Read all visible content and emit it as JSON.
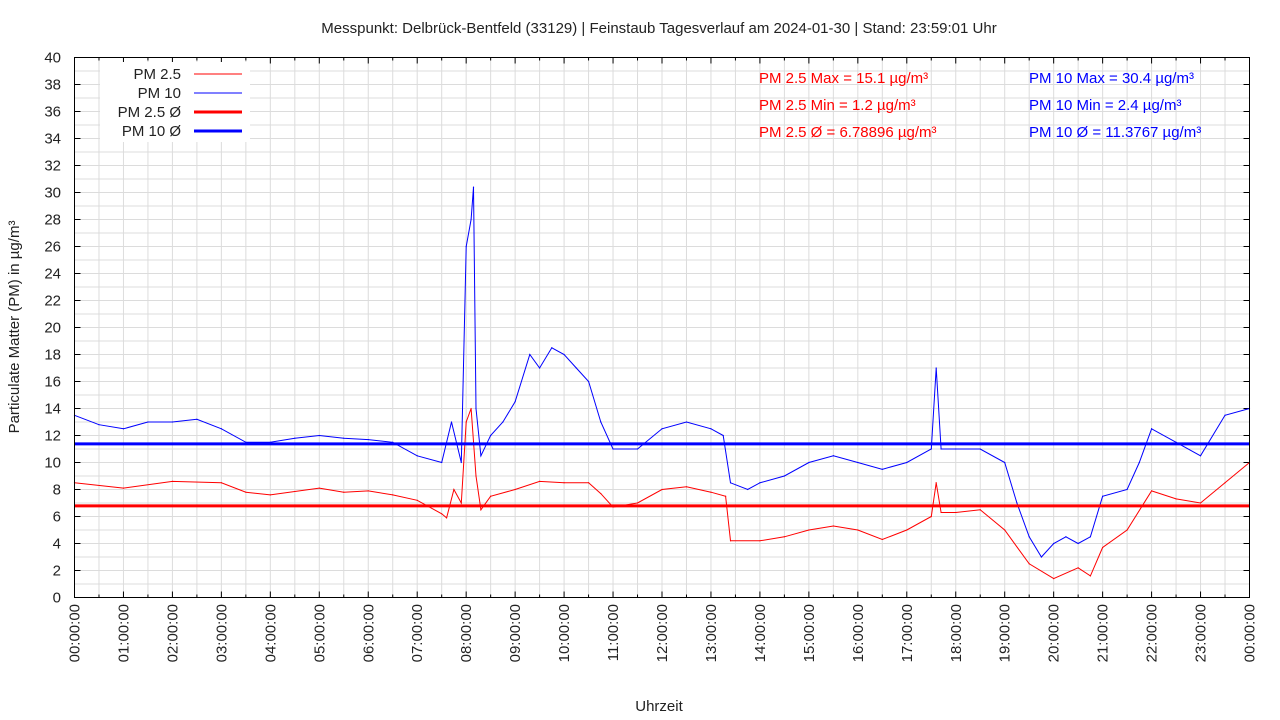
{
  "chart_data": {
    "type": "line",
    "title": "Messpunkt: Delbrück-Bentfeld (33129) | Feinstaub Tagesverlauf am 2024-01-30 | Stand: 23:59:01 Uhr",
    "xlabel": "Uhrzeit",
    "ylabel": "Particulate Matter (PM) in µg/m³",
    "xlim": [
      0,
      24
    ],
    "ylim": [
      0,
      40
    ],
    "grid": true,
    "legend_placement": "top-left",
    "x_tick_labels": [
      "00:00:00",
      "01:00:00",
      "02:00:00",
      "03:00:00",
      "04:00:00",
      "05:00:00",
      "06:00:00",
      "07:00:00",
      "08:00:00",
      "09:00:00",
      "10:00:00",
      "11:00:00",
      "12:00:00",
      "13:00:00",
      "14:00:00",
      "15:00:00",
      "16:00:00",
      "17:00:00",
      "18:00:00",
      "19:00:00",
      "20:00:00",
      "21:00:00",
      "22:00:00",
      "23:00:00",
      "00:00:00"
    ],
    "y_ticks": [
      0,
      2,
      4,
      6,
      8,
      10,
      12,
      14,
      16,
      18,
      20,
      22,
      24,
      26,
      28,
      30,
      32,
      34,
      36,
      38,
      40
    ],
    "series": [
      {
        "name": "PM 2.5",
        "color": "#ff0000",
        "x": [
          0,
          1,
          2,
          3,
          3.5,
          4,
          5,
          5.5,
          6,
          6.5,
          7,
          7.5,
          7.6,
          7.75,
          7.9,
          8,
          8.1,
          8.2,
          8.3,
          8.5,
          9,
          9.5,
          10,
          10.5,
          10.75,
          11,
          11.5,
          12,
          12.5,
          13,
          13.3,
          13.4,
          14,
          14.5,
          15,
          15.5,
          16,
          16.5,
          17,
          17.5,
          17.6,
          17.7,
          18,
          18.5,
          19,
          19.5,
          20,
          20.5,
          20.75,
          21,
          21.5,
          22,
          22.5,
          23,
          23.5,
          24
        ],
        "y": [
          8.5,
          8.1,
          8.6,
          8.5,
          7.8,
          7.6,
          8.1,
          7.8,
          7.9,
          7.6,
          7.2,
          6.2,
          5.9,
          8,
          7,
          13,
          14,
          9,
          6.5,
          7.5,
          8,
          8.6,
          8.5,
          8.5,
          7.7,
          6.7,
          7,
          8,
          8.2,
          7.8,
          7.5,
          4.2,
          4.2,
          4.5,
          5,
          5.3,
          5,
          4.3,
          5,
          6,
          8.5,
          6.3,
          6.3,
          6.5,
          5,
          2.5,
          1.4,
          2.2,
          1.6,
          3.7,
          5,
          7.9,
          7.3,
          7,
          8.5,
          10
        ]
      },
      {
        "name": "PM 10",
        "color": "#0000ff",
        "x": [
          0,
          0.5,
          1,
          1.5,
          2,
          2.5,
          3,
          3.5,
          4,
          4.5,
          5,
          5.5,
          6,
          6.5,
          7,
          7.5,
          7.7,
          7.9,
          8,
          8.1,
          8.15,
          8.2,
          8.3,
          8.5,
          8.75,
          9,
          9.3,
          9.5,
          9.75,
          10,
          10.25,
          10.5,
          10.75,
          11,
          11.5,
          12,
          12.5,
          13,
          13.25,
          13.4,
          13.75,
          14,
          14.5,
          15,
          15.5,
          16,
          16.5,
          17,
          17.5,
          17.6,
          17.7,
          18,
          18.5,
          19,
          19.25,
          19.5,
          19.75,
          20,
          20.25,
          20.5,
          20.75,
          21,
          21.5,
          21.75,
          22,
          22.5,
          23,
          23.5,
          24
        ],
        "y": [
          13.5,
          12.8,
          12.5,
          13,
          13,
          13.2,
          12.5,
          11.5,
          11.5,
          11.8,
          12,
          11.8,
          11.7,
          11.5,
          10.5,
          10,
          13,
          10,
          26,
          28,
          30.4,
          14,
          10.5,
          12,
          13,
          14.5,
          18,
          17,
          18.5,
          18,
          17,
          16,
          13,
          11,
          11,
          12.5,
          13,
          12.5,
          12,
          8.5,
          8,
          8.5,
          9,
          10,
          10.5,
          10,
          9.5,
          10,
          11,
          17,
          11,
          11,
          11,
          10,
          7,
          4.5,
          3,
          4,
          4.5,
          4,
          4.5,
          7.5,
          8,
          10,
          12.5,
          11.5,
          10.5,
          13.5,
          14
        ]
      },
      {
        "name": "PM 2.5 Ø",
        "color": "#ff0000",
        "constant": 6.78896
      },
      {
        "name": "PM 10 Ø",
        "color": "#0000ff",
        "constant": 11.3767
      }
    ],
    "annotations": {
      "pm25": [
        "PM 2.5 Max = 15.1 µg/m³",
        "PM 2.5 Min = 1.2 µg/m³",
        "PM 2.5 Ø = 6.78896 µg/m³"
      ],
      "pm10": [
        "PM 10 Max = 30.4 µg/m³",
        "PM 10 Min = 2.4 µg/m³",
        "PM 10 Ø = 11.3767 µg/m³"
      ]
    }
  }
}
